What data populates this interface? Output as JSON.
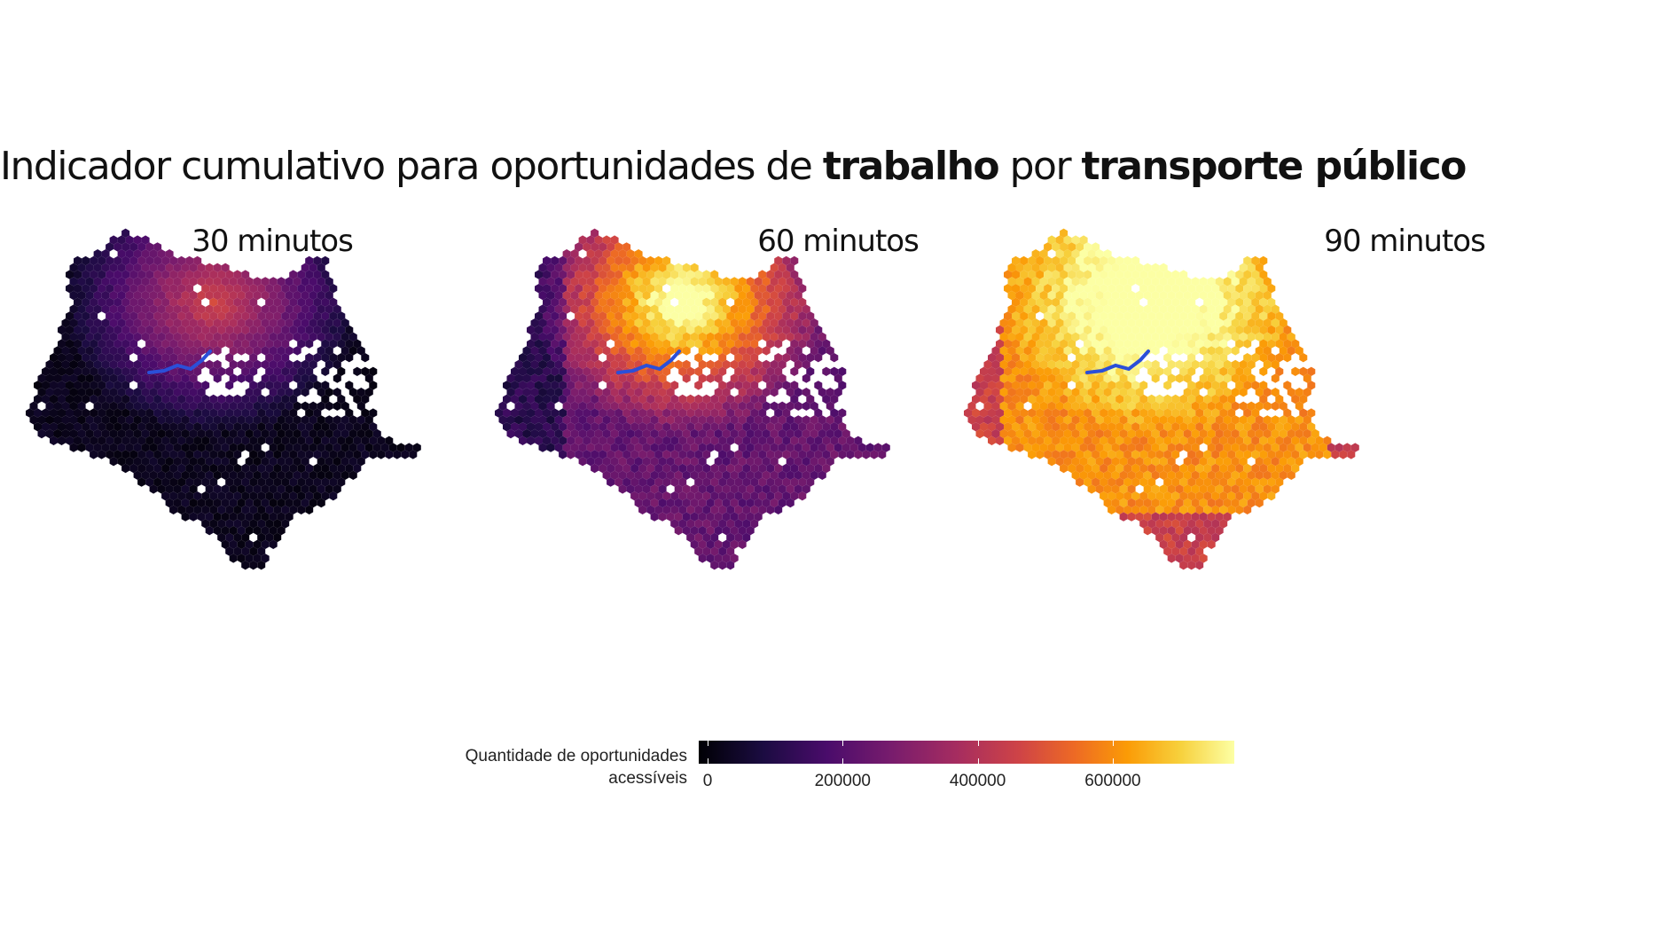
{
  "title": {
    "part1": "Indicador cumulativo para oportunidades de ",
    "bold1": "trabalho",
    "part2": " por ",
    "bold2": "transporte público"
  },
  "panels": [
    {
      "label": "30 minutos",
      "level": 0.12
    },
    {
      "label": "60 minutos",
      "level": 0.62
    },
    {
      "label": "90 minutos",
      "level": 0.95
    }
  ],
  "legend": {
    "title_line1": "Quantidade de oportunidades",
    "title_line2": "acessíveis",
    "ticks": [
      "0",
      "200000",
      "400000",
      "600000"
    ],
    "tick_values": [
      0,
      200000,
      400000,
      600000
    ],
    "max_value": 780000,
    "palette": "inferno"
  },
  "colors": {
    "rail_line": "#2b4fd8",
    "background": "#ffffff"
  }
}
